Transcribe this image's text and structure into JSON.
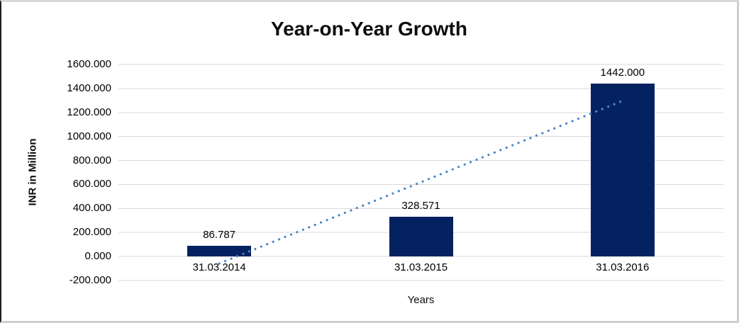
{
  "chart_data": {
    "type": "bar",
    "title": "Year-on-Year Growth",
    "xlabel": "Years",
    "ylabel": "INR in Million",
    "categories": [
      "31.03.2014",
      "31.03.2015",
      "31.03.2016"
    ],
    "values": [
      86.787,
      328.571,
      1442.0
    ],
    "data_labels": [
      "86.787",
      "328.571",
      "1442.000"
    ],
    "ytick_values": [
      1600,
      1400,
      1200,
      1000,
      800,
      600,
      400,
      200,
      0,
      -200
    ],
    "ytick_labels": [
      "1600.000",
      "1400.000",
      "1200.000",
      "1000.000",
      "800.000",
      "600.000",
      "400.000",
      "200.000",
      "0.000",
      "-200.000"
    ],
    "ylim": [
      -200,
      1600
    ],
    "grid": true,
    "legend": "none",
    "bar_color": "#052260",
    "gridline_color": "#d9d9d9",
    "trendline": {
      "type": "linear",
      "style": "dotted",
      "color": "#4a86c8",
      "start_value": -58.5,
      "end_value": 1296.7
    }
  }
}
